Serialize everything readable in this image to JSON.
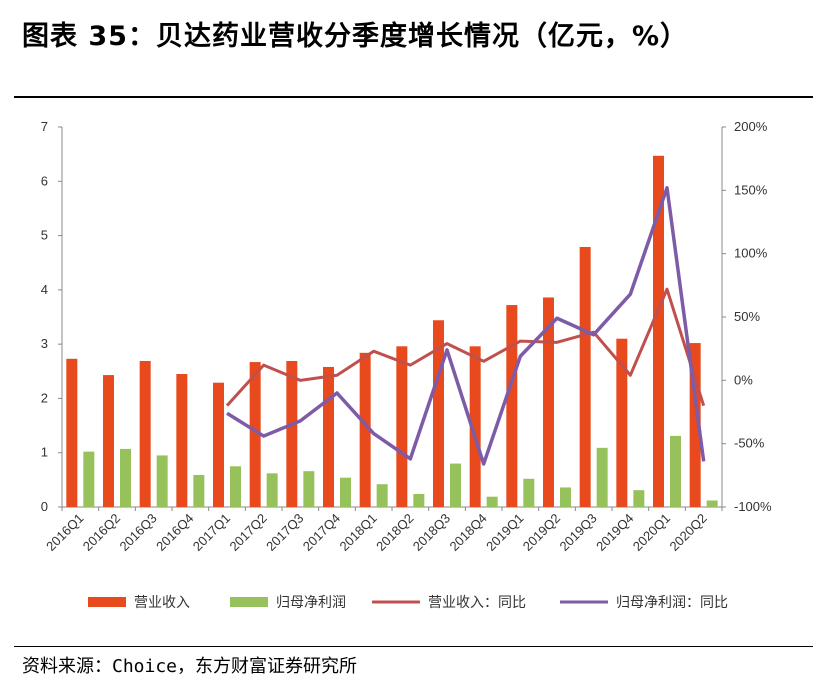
{
  "header": {
    "title": "图表 35：贝达药业营收分季度增长情况（亿元，%）"
  },
  "footer": {
    "source": "资料来源：Choice，东方财富证券研究所"
  },
  "chart_data": {
    "type": "bar",
    "categories": [
      "2016Q1",
      "2016Q2",
      "2016Q3",
      "2016Q4",
      "2017Q1",
      "2017Q2",
      "2017Q3",
      "2017Q4",
      "2018Q1",
      "2018Q2",
      "2018Q3",
      "2018Q4",
      "2019Q1",
      "2019Q2",
      "2019Q3",
      "2019Q4",
      "2020Q1",
      "2020Q2"
    ],
    "ylim": [
      0,
      7
    ],
    "y_ticks": [
      "0",
      "1",
      "2",
      "3",
      "4",
      "5",
      "6",
      "7"
    ],
    "y2lim": [
      -100,
      200
    ],
    "y2_ticks": [
      "-100%",
      "-50%",
      "0%",
      "50%",
      "100%",
      "150%",
      "200%"
    ],
    "grid": false,
    "legend_position": "bottom",
    "series": [
      {
        "name": "营业收入",
        "kind": "bar",
        "axis": "left",
        "color": "#E8491D",
        "values": [
          2.73,
          2.43,
          2.69,
          2.45,
          2.29,
          2.67,
          2.69,
          2.58,
          2.84,
          2.96,
          3.44,
          2.96,
          3.72,
          3.86,
          4.79,
          3.1,
          6.47,
          3.02
        ]
      },
      {
        "name": "归母净利润",
        "kind": "bar",
        "axis": "left",
        "color": "#97C25B",
        "values": [
          1.02,
          1.07,
          0.95,
          0.59,
          0.75,
          0.62,
          0.66,
          0.54,
          0.42,
          0.24,
          0.8,
          0.19,
          0.52,
          0.36,
          1.09,
          0.31,
          1.31,
          0.12
        ]
      },
      {
        "name": "营业收入：同比",
        "kind": "line",
        "axis": "right",
        "color": "#C0504D",
        "values": [
          null,
          null,
          null,
          null,
          -20,
          12,
          0,
          4,
          23,
          12,
          29,
          15,
          31,
          30,
          38,
          4,
          72,
          -20
        ]
      },
      {
        "name": "归母净利润：同比",
        "kind": "line",
        "axis": "right",
        "color": "#7E5BA6",
        "values": [
          null,
          null,
          null,
          null,
          -26,
          -44,
          -32,
          -10,
          -42,
          -62,
          24,
          -66,
          19,
          49,
          36,
          68,
          152,
          -64
        ]
      }
    ]
  }
}
